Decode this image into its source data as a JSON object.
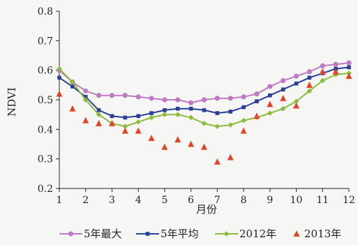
{
  "chart_data": {
    "type": "line",
    "title": "",
    "xlabel": "月份",
    "ylabel": "NDVI",
    "xlim": [
      1,
      12
    ],
    "ylim": [
      0.2,
      0.8
    ],
    "xticks": [
      "1",
      "2",
      "3",
      "4",
      "5",
      "6",
      "7",
      "8",
      "9",
      "10",
      "11",
      "12"
    ],
    "yticks": [
      "0.2",
      "0.3",
      "0.4",
      "0.5",
      "0.6",
      "0.7",
      "0.8"
    ],
    "grid": false,
    "legend_position": "bottom",
    "series": [
      {
        "name": "5年最大",
        "kind": "line-marker",
        "marker": "circle",
        "color": "#c07ac4",
        "x": [
          1,
          1.5,
          2,
          2.5,
          3,
          3.5,
          4,
          4.5,
          5,
          5.5,
          6,
          6.5,
          7,
          7.5,
          8,
          8.5,
          9,
          9.5,
          10,
          10.5,
          11,
          11.5,
          12
        ],
        "y": [
          0.6,
          0.56,
          0.53,
          0.515,
          0.515,
          0.515,
          0.51,
          0.505,
          0.5,
          0.5,
          0.49,
          0.5,
          0.505,
          0.505,
          0.51,
          0.52,
          0.545,
          0.565,
          0.58,
          0.595,
          0.615,
          0.62,
          0.625
        ]
      },
      {
        "name": "5年平均",
        "kind": "line-marker",
        "marker": "square",
        "color": "#2a3f9a",
        "x": [
          1,
          1.5,
          2,
          2.5,
          3,
          3.5,
          4,
          4.5,
          5,
          5.5,
          6,
          6.5,
          7,
          7.5,
          8,
          8.5,
          9,
          9.5,
          10,
          10.5,
          11,
          11.5,
          12
        ],
        "y": [
          0.575,
          0.545,
          0.51,
          0.465,
          0.445,
          0.44,
          0.445,
          0.455,
          0.465,
          0.47,
          0.47,
          0.465,
          0.455,
          0.46,
          0.475,
          0.495,
          0.515,
          0.535,
          0.555,
          0.575,
          0.59,
          0.605,
          0.61
        ]
      },
      {
        "name": "2012年",
        "kind": "line-marker",
        "marker": "diamond",
        "color": "#8cbc3c",
        "x": [
          1,
          1.5,
          2,
          2.5,
          3,
          3.5,
          4,
          4.5,
          5,
          5.5,
          6,
          6.5,
          7,
          7.5,
          8,
          8.5,
          9,
          9.5,
          10,
          10.5,
          11,
          11.5,
          12
        ],
        "y": [
          0.605,
          0.56,
          0.5,
          0.45,
          0.42,
          0.41,
          0.425,
          0.44,
          0.45,
          0.45,
          0.44,
          0.42,
          0.41,
          0.415,
          0.43,
          0.44,
          0.455,
          0.47,
          0.495,
          0.53,
          0.565,
          0.585,
          0.59
        ]
      },
      {
        "name": "2013年",
        "kind": "marker",
        "marker": "triangle",
        "color": "#e0452a",
        "x": [
          1,
          1.5,
          2,
          2.5,
          3,
          3.5,
          4,
          4.5,
          5,
          5.5,
          6,
          6.5,
          7,
          7.5,
          8,
          8.5,
          9,
          9.5,
          10,
          10.5,
          11,
          11.5,
          12
        ],
        "y": [
          0.52,
          0.47,
          0.43,
          0.42,
          0.42,
          0.395,
          0.395,
          0.37,
          0.34,
          0.365,
          0.35,
          0.34,
          0.29,
          0.305,
          0.395,
          0.445,
          0.485,
          0.505,
          0.48,
          0.55,
          0.595,
          0.595,
          0.58
        ]
      }
    ]
  }
}
